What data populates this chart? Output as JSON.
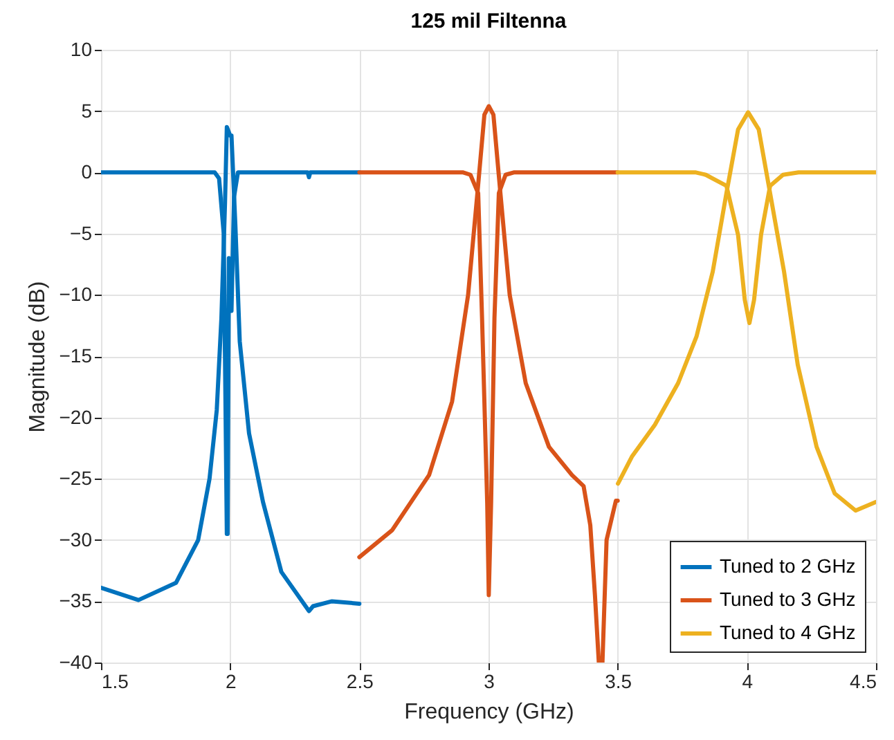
{
  "chart_data": {
    "type": "line",
    "title": "125 mil Filtenna",
    "xlabel": "Frequency (GHz)",
    "ylabel": "Magnitude (dB)",
    "xlim": [
      1.5,
      4.5
    ],
    "xticks": [
      1.5,
      2,
      2.5,
      3,
      3.5,
      4,
      4.5
    ],
    "ylim": [
      -40,
      10
    ],
    "yticks": [
      -40,
      -35,
      -30,
      -25,
      -20,
      -15,
      -10,
      -5,
      0,
      5,
      10
    ],
    "grid": true,
    "legend": "bottom right",
    "line_style": "solid",
    "series": [
      {
        "name": "Tuned to 2 GHz",
        "color": "#0072bd",
        "x": [
          1.5,
          1.645,
          1.79,
          1.876,
          1.92,
          1.948,
          1.966,
          1.98,
          1.987,
          2.0,
          2.005,
          2.02,
          2.037,
          2.073,
          2.127,
          2.198,
          2.305,
          2.321,
          2.394,
          2.5
        ],
        "values": [
          -33.9,
          -34.9,
          -33.5,
          -30,
          -25,
          -19.4,
          -11.9,
          -2.5,
          3.7,
          3.0,
          3.0,
          -4.3,
          -13.8,
          -21.3,
          -26.9,
          -32.6,
          -35.8,
          -35.4,
          -35.0,
          -35.2
        ]
      },
      {
        "color": "#0072bd",
        "x": [
          1.5,
          1.94,
          1.957,
          1.975,
          1.987,
          1.99,
          1.995,
          2.005,
          2.015,
          2.03,
          2.3,
          2.305,
          2.31,
          2.5
        ],
        "values": [
          0,
          0,
          -0.5,
          -5,
          -29.5,
          -29.5,
          -7,
          -11.3,
          -2,
          0,
          0,
          -0.4,
          0,
          0
        ]
      },
      {
        "name": "Tuned to 3 GHz",
        "color": "#d95319",
        "x": [
          2.5,
          2.627,
          2.77,
          2.859,
          2.921,
          2.957,
          2.984,
          3.001,
          3.019,
          3.046,
          3.082,
          3.144,
          3.234,
          3.323,
          3.368,
          3.394,
          3.412,
          3.427,
          3.441,
          3.457,
          3.493,
          3.5
        ],
        "values": [
          -31.4,
          -29.2,
          -24.7,
          -18.7,
          -10,
          -1.7,
          4.7,
          5.4,
          4.7,
          -1.7,
          -10,
          -17.2,
          -22.4,
          -24.7,
          -25.6,
          -28.8,
          -34.5,
          -40,
          -40,
          -30,
          -26.8,
          -26.8
        ]
      },
      {
        "color": "#d95319",
        "x": [
          2.5,
          2.9,
          2.93,
          2.96,
          2.975,
          2.995,
          3.001,
          3.01,
          3.023,
          3.04,
          3.066,
          3.1,
          3.5
        ],
        "values": [
          0,
          0,
          -0.2,
          -1.7,
          -11.9,
          -27,
          -34.5,
          -27,
          -11.9,
          -1.7,
          -0.2,
          0,
          0
        ]
      },
      {
        "name": "Tuned to 4 GHz",
        "color": "#edb120",
        "x": [
          3.501,
          3.555,
          3.644,
          3.734,
          3.805,
          3.868,
          3.921,
          3.966,
          4.005,
          4.046,
          4.09,
          4.144,
          4.197,
          4.27,
          4.34,
          4.421,
          4.5
        ],
        "values": [
          -25.4,
          -23.2,
          -20.6,
          -17.2,
          -13.4,
          -8.1,
          -1.7,
          3.5,
          4.9,
          3.5,
          -1.7,
          -8.1,
          -15.7,
          -22.4,
          -26.2,
          -27.6,
          -26.9
        ]
      },
      {
        "color": "#edb120",
        "x": [
          3.5,
          3.8,
          3.841,
          3.921,
          3.966,
          3.992,
          4.01,
          4.028,
          4.055,
          4.09,
          4.14,
          4.2,
          4.5
        ],
        "values": [
          0,
          0,
          -0.2,
          -1.1,
          -5.1,
          -10.4,
          -12.3,
          -10.4,
          -5.1,
          -1.1,
          -0.2,
          0,
          0
        ]
      }
    ]
  }
}
